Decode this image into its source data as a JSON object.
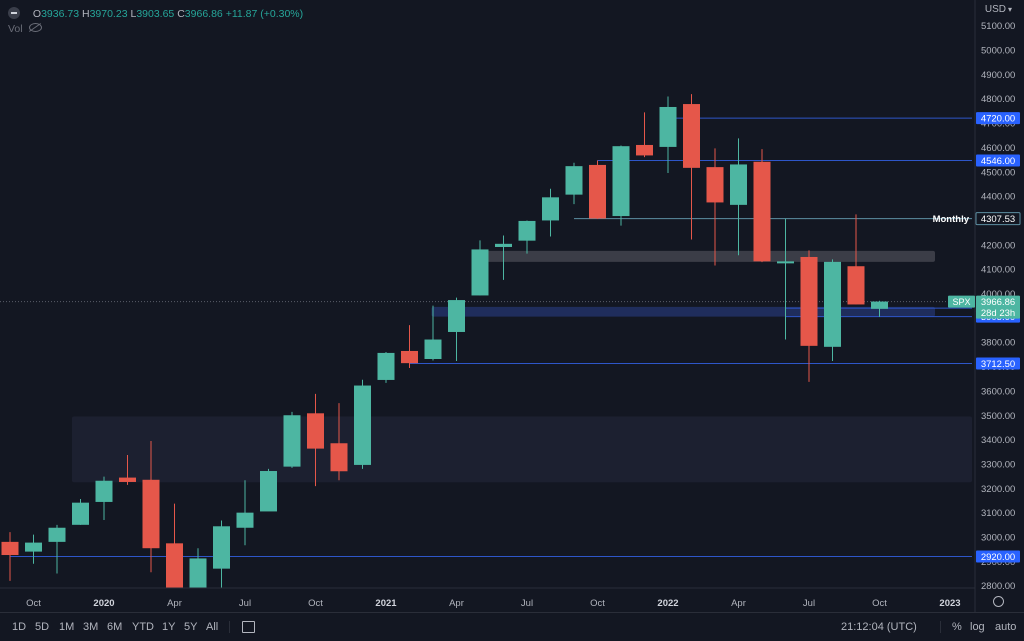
{
  "header": {
    "open_label": "O",
    "open": "3936.73",
    "high_label": "H",
    "high": "3970.23",
    "low_label": "L",
    "low": "3903.65",
    "close_label": "C",
    "close": "3966.86",
    "change": "+11.87 (+0.30%)",
    "vol_label": "Vol"
  },
  "currency": "USD",
  "time_buttons": [
    "1D",
    "5D",
    "1M",
    "3M",
    "6M",
    "YTD",
    "1Y",
    "5Y",
    "All"
  ],
  "footer": {
    "time": "21:12:04 (UTC)",
    "pct": "%",
    "log": "log",
    "auto": "auto"
  },
  "colors": {
    "background": "#131722",
    "up": "#4db6a2",
    "down": "#e5574a",
    "level_line": "#2e56c9",
    "label_bg": "#2962ff"
  },
  "chart_data": {
    "type": "candlestick",
    "symbol": "SPX",
    "timeframe": "Monthly",
    "ylim": [
      2770,
      5200
    ],
    "y_ticks": [
      2800,
      2900,
      3000,
      3100,
      3200,
      3300,
      3400,
      3500,
      3600,
      3700,
      3800,
      3900,
      4000,
      4100,
      4200,
      4300,
      4400,
      4500,
      4600,
      4700,
      4800,
      4900,
      5000,
      5100
    ],
    "x_ticks": [
      {
        "label": "Oct",
        "i": 1
      },
      {
        "label": "2020",
        "i": 4,
        "bold": true
      },
      {
        "label": "Apr",
        "i": 7
      },
      {
        "label": "Jul",
        "i": 10
      },
      {
        "label": "Oct",
        "i": 13
      },
      {
        "label": "2021",
        "i": 16,
        "bold": true
      },
      {
        "label": "Apr",
        "i": 19
      },
      {
        "label": "Jul",
        "i": 22
      },
      {
        "label": "Oct",
        "i": 25
      },
      {
        "label": "2022",
        "i": 28,
        "bold": true
      },
      {
        "label": "Apr",
        "i": 31
      },
      {
        "label": "Jul",
        "i": 34
      },
      {
        "label": "Oct",
        "i": 37
      },
      {
        "label": "2023",
        "i": 40,
        "bold": true
      }
    ],
    "candles": [
      {
        "t": "2019-08",
        "o": 2980,
        "h": 3020,
        "l": 2820,
        "c": 2926
      },
      {
        "t": "2019-09",
        "o": 2940,
        "h": 3010,
        "l": 2890,
        "c": 2977
      },
      {
        "t": "2019-10",
        "o": 2980,
        "h": 3050,
        "l": 2850,
        "c": 3038
      },
      {
        "t": "2019-11",
        "o": 3050,
        "h": 3156,
        "l": 3050,
        "c": 3141
      },
      {
        "t": "2019-12",
        "o": 3144,
        "h": 3248,
        "l": 3070,
        "c": 3231
      },
      {
        "t": "2020-01",
        "o": 3244,
        "h": 3337,
        "l": 3214,
        "c": 3226
      },
      {
        "t": "2020-02",
        "o": 3235,
        "h": 3394,
        "l": 2855,
        "c": 2954
      },
      {
        "t": "2020-03",
        "o": 2974,
        "h": 3137,
        "l": 2192,
        "c": 2585
      },
      {
        "t": "2020-04",
        "o": 2499,
        "h": 2954,
        "l": 2448,
        "c": 2912
      },
      {
        "t": "2020-05",
        "o": 2870,
        "h": 3068,
        "l": 2767,
        "c": 3044
      },
      {
        "t": "2020-06",
        "o": 3038,
        "h": 3233,
        "l": 2966,
        "c": 3100
      },
      {
        "t": "2020-07",
        "o": 3105,
        "h": 3280,
        "l": 3115,
        "c": 3271
      },
      {
        "t": "2020-08",
        "o": 3289,
        "h": 3514,
        "l": 3284,
        "c": 3500
      },
      {
        "t": "2020-09",
        "o": 3508,
        "h": 3588,
        "l": 3209,
        "c": 3363
      },
      {
        "t": "2020-10",
        "o": 3385,
        "h": 3550,
        "l": 3233,
        "c": 3270
      },
      {
        "t": "2020-11",
        "o": 3296,
        "h": 3646,
        "l": 3280,
        "c": 3622
      },
      {
        "t": "2020-12",
        "o": 3645,
        "h": 3760,
        "l": 3633,
        "c": 3756
      },
      {
        "t": "2021-01",
        "o": 3764,
        "h": 3870,
        "l": 3694,
        "c": 3714
      },
      {
        "t": "2021-02",
        "o": 3731,
        "h": 3950,
        "l": 3725,
        "c": 3811
      },
      {
        "t": "2021-03",
        "o": 3842,
        "h": 3983,
        "l": 3723,
        "c": 3973
      },
      {
        "t": "2021-04",
        "o": 3992,
        "h": 4218,
        "l": 3992,
        "c": 4181
      },
      {
        "t": "2021-05",
        "o": 4191,
        "h": 4238,
        "l": 4056,
        "c": 4204
      },
      {
        "t": "2021-06",
        "o": 4217,
        "h": 4300,
        "l": 4164,
        "c": 4298
      },
      {
        "t": "2021-07",
        "o": 4300,
        "h": 4430,
        "l": 4234,
        "c": 4395
      },
      {
        "t": "2021-08",
        "o": 4406,
        "h": 4537,
        "l": 4367,
        "c": 4523
      },
      {
        "t": "2021-09",
        "o": 4528,
        "h": 4546,
        "l": 4306,
        "c": 4308
      },
      {
        "t": "2021-10",
        "o": 4318,
        "h": 4608,
        "l": 4279,
        "c": 4605
      },
      {
        "t": "2021-11",
        "o": 4610,
        "h": 4744,
        "l": 4560,
        "c": 4567
      },
      {
        "t": "2021-12",
        "o": 4602,
        "h": 4809,
        "l": 4495,
        "c": 4766
      },
      {
        "t": "2022-01",
        "o": 4778,
        "h": 4819,
        "l": 4222,
        "c": 4516
      },
      {
        "t": "2022-02",
        "o": 4519,
        "h": 4596,
        "l": 4115,
        "c": 4374
      },
      {
        "t": "2022-03",
        "o": 4364,
        "h": 4637,
        "l": 4157,
        "c": 4530
      },
      {
        "t": "2022-04",
        "o": 4541,
        "h": 4593,
        "l": 4129,
        "c": 4132
      },
      {
        "t": "2022-05",
        "o": 4130,
        "h": 4307,
        "l": 3811,
        "c": 4132
      },
      {
        "t": "2022-06",
        "o": 4150,
        "h": 4177,
        "l": 3637,
        "c": 3785
      },
      {
        "t": "2022-07",
        "o": 3781,
        "h": 4140,
        "l": 3723,
        "c": 4130
      },
      {
        "t": "2022-08",
        "o": 4112,
        "h": 4325,
        "l": 3955,
        "c": 3955
      },
      {
        "t": "2022-09",
        "o": 3937,
        "h": 3970,
        "l": 3904,
        "c": 3967
      }
    ],
    "levels": [
      {
        "price": 4720.0,
        "label": "4720.00",
        "style": "blue"
      },
      {
        "price": 4546.0,
        "label": "4546.00",
        "style": "blue"
      },
      {
        "price": 4307.53,
        "label": "4307.53",
        "style": "cyan",
        "text": "Monthly"
      },
      {
        "price": 3940.0,
        "label": "3940.00",
        "style": "blue"
      },
      {
        "price": 3905.0,
        "label": "3905.00",
        "style": "blue"
      },
      {
        "price": 3712.5,
        "label": "3712.50",
        "style": "blue"
      },
      {
        "price": 2920.0,
        "label": "2920.00",
        "style": "blue"
      }
    ],
    "current": {
      "label": "SPX",
      "price": "3966.86",
      "countdown": "28d 23h",
      "value": 3966.86
    },
    "zones": [
      {
        "y_top": 3495,
        "y_bottom": 3225,
        "i_start": 3,
        "color": "#1c2030"
      },
      {
        "y_top": 4175,
        "y_bottom": 4130,
        "i_start": 20,
        "i_end": 39,
        "color": "#3b3d47"
      },
      {
        "y_top": 3945,
        "y_bottom": 3905,
        "i_start": 18.3,
        "i_end": 39,
        "color": "#1f2d5c"
      }
    ]
  }
}
